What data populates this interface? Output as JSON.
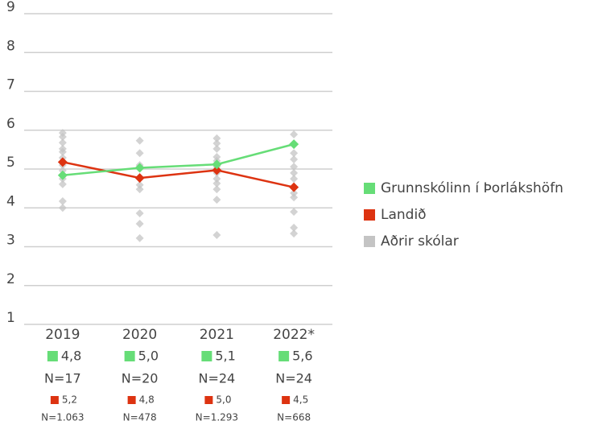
{
  "chart_data": {
    "type": "line",
    "categories": [
      "2019",
      "2020",
      "2021",
      "2022*"
    ],
    "ylim": [
      1,
      9
    ],
    "yticks": [
      1,
      2,
      3,
      4,
      5,
      6,
      7,
      8,
      9
    ],
    "grid": true,
    "series": [
      {
        "name": "Grunnskólinn í Þorlákshöfn",
        "color": "#66dd77",
        "values": [
          4.84,
          5.03,
          5.12,
          5.64
        ],
        "value_labels": [
          "4,8",
          "5,0",
          "5,1",
          "5,6"
        ],
        "n_labels": [
          "N=17",
          "N=20",
          "N=24",
          "N=24"
        ]
      },
      {
        "name": "Landið",
        "color": "#dd3311",
        "values": [
          5.18,
          4.77,
          4.97,
          4.53
        ],
        "value_labels": [
          "5,2",
          "4,8",
          "5,0",
          "4,5"
        ],
        "n_labels": [
          "N=1.063",
          "N=478",
          "N=1.293",
          "N=668"
        ]
      },
      {
        "name": "Aðrir skólar",
        "color": "#c4c4c4",
        "values": [
          [
            5.93,
            5.83,
            5.68,
            5.52,
            5.44,
            5.29,
            5.1,
            4.96,
            4.75,
            4.61,
            4.17,
            4.0
          ],
          [
            5.73,
            5.41,
            5.1,
            4.59,
            4.48,
            3.86,
            3.59,
            3.22
          ],
          [
            5.79,
            5.66,
            5.52,
            5.31,
            5.21,
            5.06,
            4.9,
            4.75,
            4.63,
            4.48,
            4.21,
            3.3
          ],
          [
            5.89,
            5.41,
            5.25,
            5.06,
            4.9,
            4.75,
            4.38,
            4.27,
            3.9,
            3.49,
            3.34
          ]
        ]
      }
    ]
  }
}
